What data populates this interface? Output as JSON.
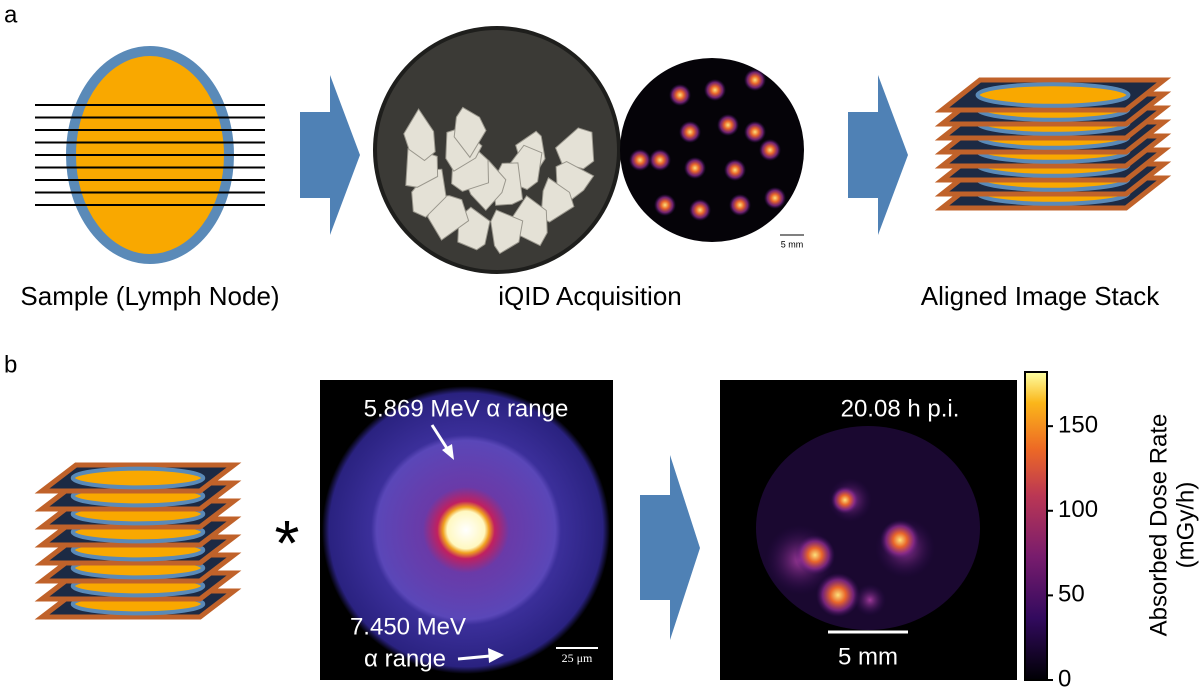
{
  "panel_a": {
    "label": "a",
    "captions": [
      "Sample (Lymph Node)",
      "iQID Acquisition",
      "Aligned Image Stack"
    ],
    "scale_bar": "5 mm"
  },
  "panel_b": {
    "label": "b",
    "operator": "*",
    "kernel": {
      "annotations": [
        "5.869 MeV α range",
        "7.450 MeV",
        "α range"
      ],
      "scale_bar": "25 μm"
    },
    "dose_map": {
      "time": "20.08 h p.i.",
      "scale_bar": "5 mm"
    },
    "colorbar": {
      "label": "Absorbed Dose Rate",
      "unit": "(mGy/h)",
      "lim": [
        0,
        182
      ],
      "ticks": [
        0,
        50,
        100,
        150
      ]
    }
  }
}
